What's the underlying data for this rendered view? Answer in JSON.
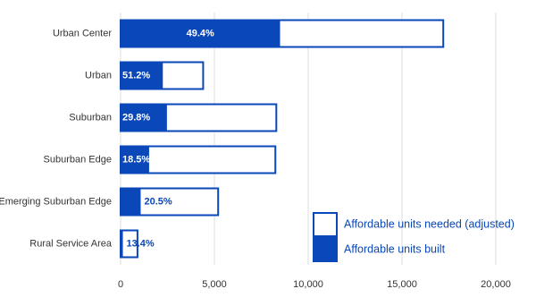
{
  "chart_data": {
    "type": "overlap-bar",
    "categories": [
      "Urban Center",
      "Urban",
      "Suburban",
      "Suburban Edge",
      "Emerging Suburban Edge",
      "Rural Service Area"
    ],
    "series": [
      {
        "name": "Affordable units needed (adjusted)",
        "color": "#ffffff",
        "values": [
          17200,
          4400,
          8300,
          8250,
          5200,
          900
        ]
      },
      {
        "name": "Affordable units built",
        "color": "#0a47b8",
        "values": [
          8500,
          2250,
          2470,
          1520,
          1070,
          120
        ]
      }
    ],
    "built_share": {
      "values": [
        49.4,
        51.2,
        29.8,
        18.5,
        20.5,
        13.4
      ],
      "value_labels": [
        "49.4%",
        "51.2%",
        "29.8%",
        "18.5%",
        "20.5%",
        "13.4%"
      ]
    },
    "xlim": [
      0,
      20000
    ],
    "xticks": [
      0,
      {
        "value": 5000,
        "label": "5,000"
      },
      {
        "value": 10000,
        "label": "10,000"
      },
      {
        "value": 15000,
        "label": "15,000"
      },
      {
        "value": 20000,
        "label": "20,000"
      }
    ],
    "grid": true,
    "legend": "lower right"
  }
}
